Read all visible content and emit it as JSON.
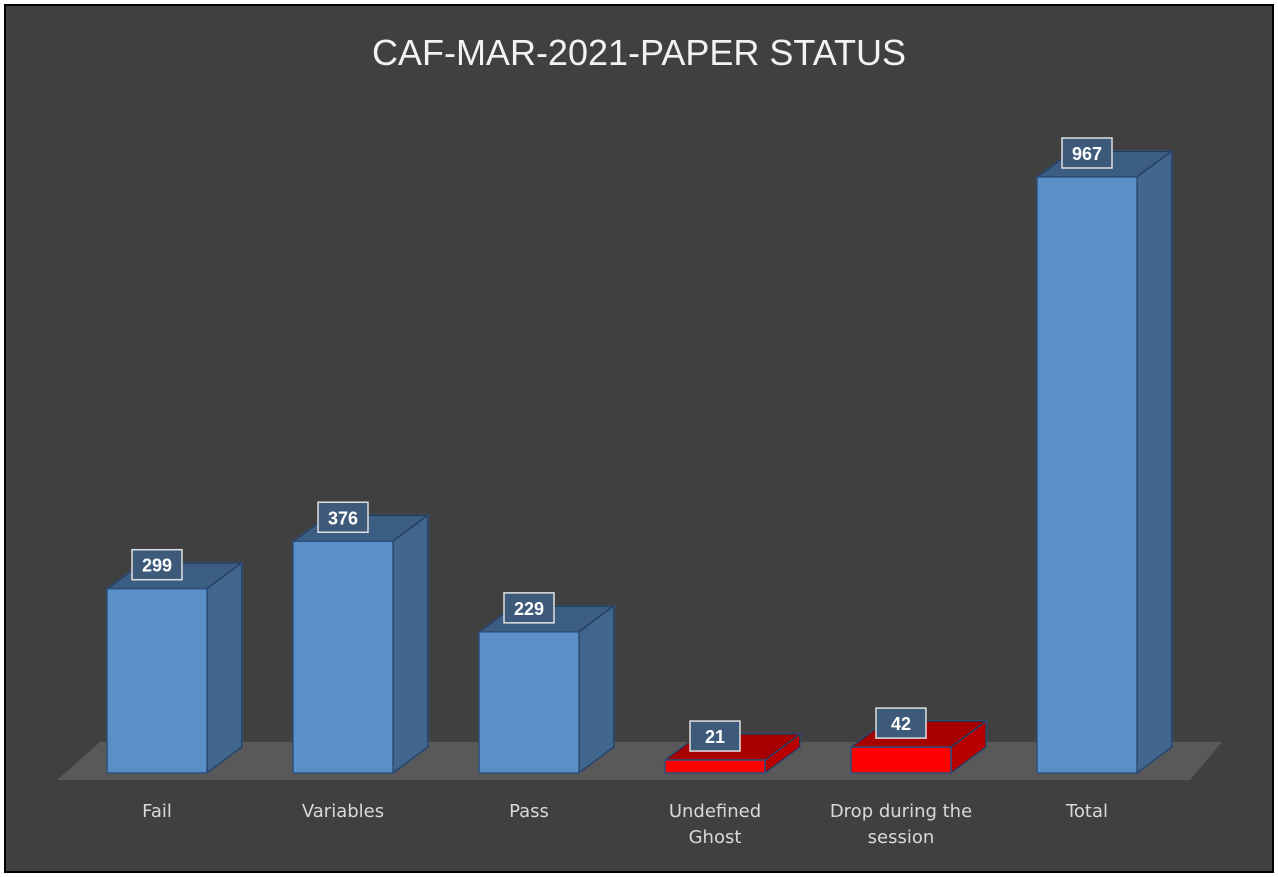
{
  "chart_data": {
    "type": "bar",
    "title": "CAF-MAR-2021-PAPER STATUS",
    "categories": [
      "Fail",
      "Variables",
      "Pass",
      "Undefined Ghost",
      "Drop during the session",
      "Total"
    ],
    "values": [
      299,
      376,
      229,
      21,
      42,
      967
    ],
    "colors": [
      "#5b8fc7",
      "#5b8fc7",
      "#5b8fc7",
      "#ff0000",
      "#ff0000",
      "#5b8fc7"
    ]
  }
}
